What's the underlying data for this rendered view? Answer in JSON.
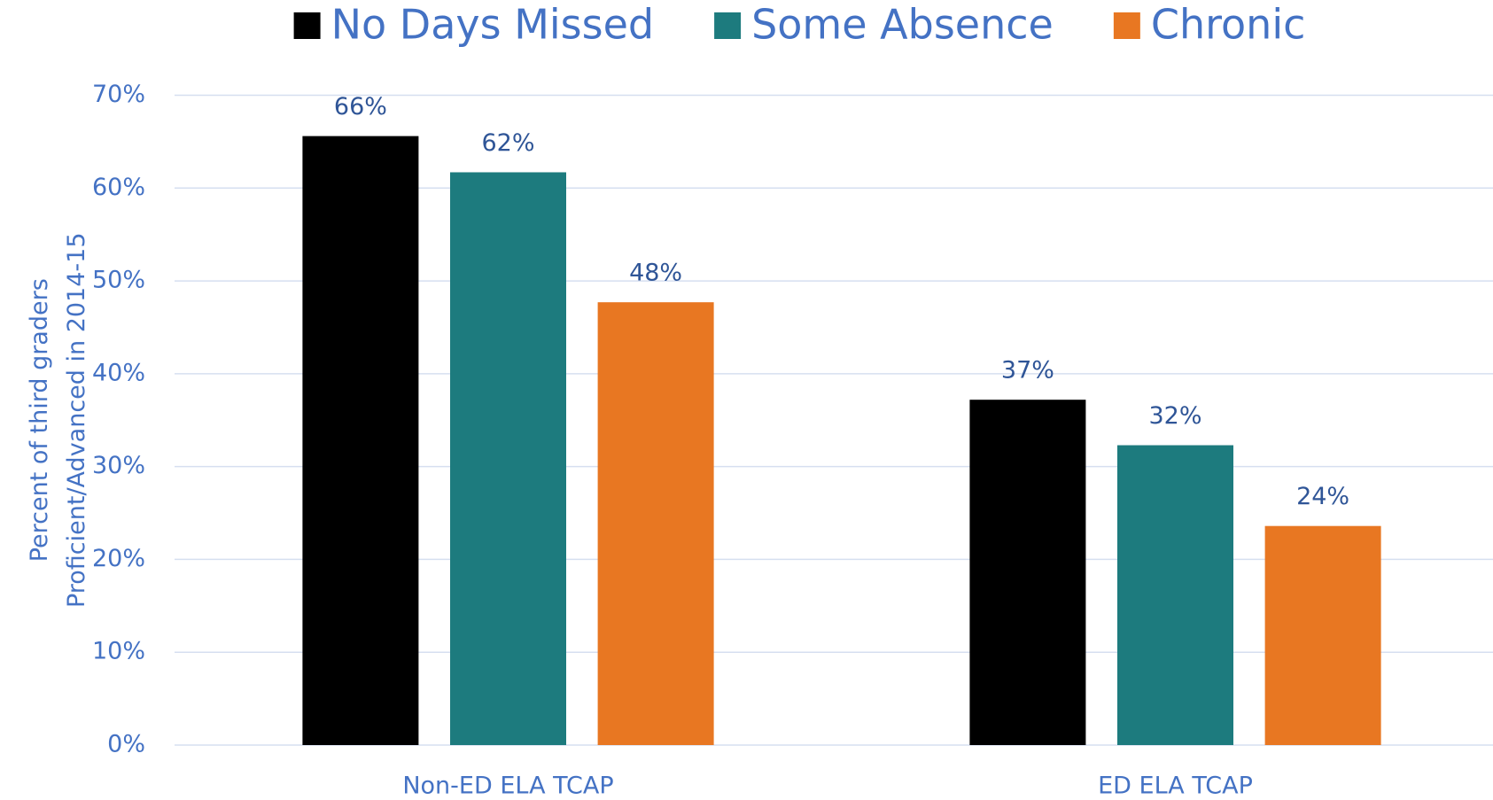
{
  "chart_data": {
    "type": "bar",
    "ylabel": [
      "Percent of third graders",
      "Proficient/Advanced in 2014-15"
    ],
    "categories": [
      "Non-ED ELA TCAP",
      "ED ELA TCAP"
    ],
    "series": [
      {
        "name": "No Days Missed",
        "color": "#000000",
        "values": [
          65.6,
          37.2
        ],
        "value_labels": [
          "66%",
          "37%"
        ]
      },
      {
        "name": "Some Absence",
        "color": "#1d7b7e",
        "values": [
          61.7,
          32.3
        ],
        "value_labels": [
          "62%",
          "32%"
        ]
      },
      {
        "name": "Chronic",
        "color": "#e87722",
        "values": [
          47.7,
          23.6
        ],
        "value_labels": [
          "48%",
          "24%"
        ]
      }
    ],
    "ylim": [
      0,
      70
    ],
    "yticks": [
      {
        "value": 0,
        "label": "0%"
      },
      {
        "value": 10,
        "label": "10%"
      },
      {
        "value": 20,
        "label": "20%"
      },
      {
        "value": 30,
        "label": "30%"
      },
      {
        "value": 40,
        "label": "40%"
      },
      {
        "value": 50,
        "label": "50%"
      },
      {
        "value": 60,
        "label": "60%"
      },
      {
        "value": 70,
        "label": "70%"
      }
    ],
    "grid": true,
    "legend": "top"
  }
}
